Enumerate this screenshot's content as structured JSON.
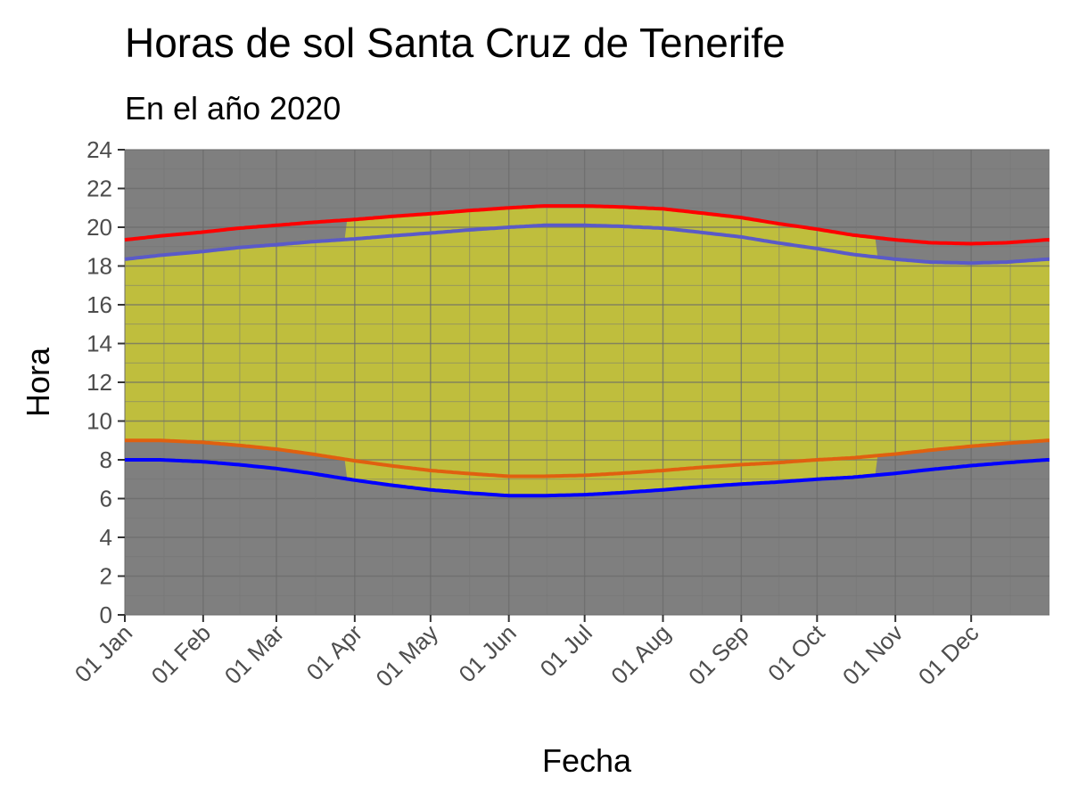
{
  "chart_data": {
    "type": "area",
    "title": "Horas de sol Santa Cruz de Tenerife",
    "subtitle": "En el año 2020",
    "xlabel": "Fecha",
    "ylabel": "Hora",
    "x_range": [
      "2020-01-01",
      "2020-12-31"
    ],
    "ylim": [
      0,
      24
    ],
    "y_ticks": [
      "0",
      "2",
      "4",
      "6",
      "8",
      "10",
      "12",
      "14",
      "16",
      "18",
      "20",
      "22",
      "24"
    ],
    "x_ticks": [
      {
        "date": "2020-01-01",
        "label": "01 Jan"
      },
      {
        "date": "2020-02-01",
        "label": "01 Feb"
      },
      {
        "date": "2020-03-01",
        "label": "01 Mar"
      },
      {
        "date": "2020-04-01",
        "label": "01 Apr"
      },
      {
        "date": "2020-05-01",
        "label": "01 May"
      },
      {
        "date": "2020-06-01",
        "label": "01 Jun"
      },
      {
        "date": "2020-07-01",
        "label": "01 Jul"
      },
      {
        "date": "2020-08-01",
        "label": "01 Aug"
      },
      {
        "date": "2020-09-01",
        "label": "01 Sep"
      },
      {
        "date": "2020-10-01",
        "label": "01 Oct"
      },
      {
        "date": "2020-11-01",
        "label": "01 Nov"
      },
      {
        "date": "2020-12-01",
        "label": "01 Dec"
      }
    ],
    "grid": true,
    "dst_period": {
      "start": "2020-03-29",
      "end": "2020-10-25"
    },
    "series": [
      {
        "role": "sunrise_standard",
        "color": "#0000ff",
        "x": [
          "2020-01-01",
          "2020-01-15",
          "2020-02-01",
          "2020-02-15",
          "2020-03-01",
          "2020-03-15",
          "2020-04-01",
          "2020-04-15",
          "2020-05-01",
          "2020-05-15",
          "2020-06-01",
          "2020-06-15",
          "2020-07-01",
          "2020-07-15",
          "2020-08-01",
          "2020-08-15",
          "2020-09-01",
          "2020-09-15",
          "2020-10-01",
          "2020-10-15",
          "2020-11-01",
          "2020-11-15",
          "2020-12-01",
          "2020-12-15",
          "2020-12-31"
        ],
        "values": [
          8.0,
          8.0,
          7.9,
          7.75,
          7.55,
          7.3,
          6.95,
          6.7,
          6.45,
          6.3,
          6.15,
          6.15,
          6.2,
          6.3,
          6.45,
          6.6,
          6.75,
          6.85,
          7.0,
          7.1,
          7.3,
          7.5,
          7.7,
          7.85,
          8.0
        ]
      },
      {
        "role": "sunset_standard",
        "color": "#5a5ac8",
        "x": [
          "2020-01-01",
          "2020-01-15",
          "2020-02-01",
          "2020-02-15",
          "2020-03-01",
          "2020-03-15",
          "2020-04-01",
          "2020-04-15",
          "2020-05-01",
          "2020-05-15",
          "2020-06-01",
          "2020-06-15",
          "2020-07-01",
          "2020-07-15",
          "2020-08-01",
          "2020-08-15",
          "2020-09-01",
          "2020-09-15",
          "2020-10-01",
          "2020-10-15",
          "2020-11-01",
          "2020-11-15",
          "2020-12-01",
          "2020-12-15",
          "2020-12-31"
        ],
        "values": [
          18.35,
          18.55,
          18.75,
          18.95,
          19.1,
          19.25,
          19.4,
          19.55,
          19.7,
          19.85,
          20.0,
          20.1,
          20.1,
          20.05,
          19.95,
          19.75,
          19.5,
          19.2,
          18.9,
          18.6,
          18.35,
          18.2,
          18.15,
          18.2,
          18.35
        ]
      },
      {
        "role": "sunrise_with_offset",
        "color": "#e06010",
        "x": [
          "2020-01-01",
          "2020-01-15",
          "2020-02-01",
          "2020-02-15",
          "2020-03-01",
          "2020-03-15",
          "2020-04-01",
          "2020-04-15",
          "2020-05-01",
          "2020-05-15",
          "2020-06-01",
          "2020-06-15",
          "2020-07-01",
          "2020-07-15",
          "2020-08-01",
          "2020-08-15",
          "2020-09-01",
          "2020-09-15",
          "2020-10-01",
          "2020-10-15",
          "2020-11-01",
          "2020-11-15",
          "2020-12-01",
          "2020-12-15",
          "2020-12-31"
        ],
        "values": [
          9.0,
          9.0,
          8.9,
          8.75,
          8.55,
          8.3,
          7.95,
          7.7,
          7.45,
          7.3,
          7.15,
          7.15,
          7.2,
          7.3,
          7.45,
          7.6,
          7.75,
          7.85,
          8.0,
          8.1,
          8.3,
          8.5,
          8.7,
          8.85,
          9.0
        ]
      },
      {
        "role": "sunset_with_offset",
        "color": "#ff0000",
        "x": [
          "2020-01-01",
          "2020-01-15",
          "2020-02-01",
          "2020-02-15",
          "2020-03-01",
          "2020-03-15",
          "2020-04-01",
          "2020-04-15",
          "2020-05-01",
          "2020-05-15",
          "2020-06-01",
          "2020-06-15",
          "2020-07-01",
          "2020-07-15",
          "2020-08-01",
          "2020-08-15",
          "2020-09-01",
          "2020-09-15",
          "2020-10-01",
          "2020-10-15",
          "2020-11-01",
          "2020-11-15",
          "2020-12-01",
          "2020-12-15",
          "2020-12-31"
        ],
        "values": [
          19.35,
          19.55,
          19.75,
          19.95,
          20.1,
          20.25,
          20.4,
          20.55,
          20.7,
          20.85,
          21.0,
          21.1,
          21.1,
          21.05,
          20.95,
          20.75,
          20.5,
          20.2,
          19.9,
          19.6,
          19.35,
          19.2,
          19.15,
          19.2,
          19.35
        ]
      }
    ],
    "colors": {
      "panel_background": "#7f7f7f",
      "grid_major": "#6b6b6b",
      "grid_minor": "#767676",
      "daylight_fill": "#c3c23a",
      "tick_label": "#4d4d4d",
      "axis_tick": "#333333"
    }
  }
}
